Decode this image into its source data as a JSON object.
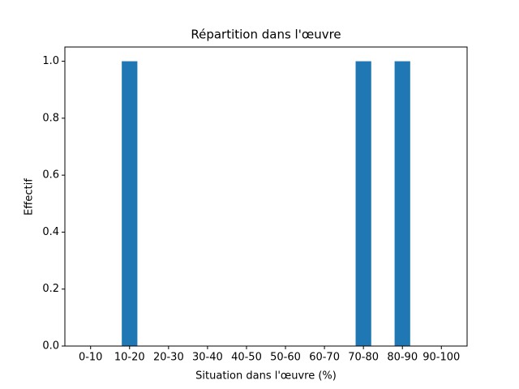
{
  "chart_data": {
    "type": "bar",
    "title": "Répartition dans l'œuvre",
    "x_label": "Situation dans l'œuvre (%)",
    "y_label": "Effectif",
    "categories": [
      "0-10",
      "10-20",
      "20-30",
      "30-40",
      "40-50",
      "50-60",
      "60-70",
      "70-80",
      "80-90",
      "90-100"
    ],
    "values": [
      0,
      1,
      0,
      0,
      0,
      0,
      0,
      1,
      1,
      0
    ],
    "color": "#1f77b4",
    "ylim": [
      0,
      1.05
    ],
    "yticks": [
      {
        "value": 0,
        "label": "0.0"
      },
      {
        "value": 0.2,
        "label": "0.2"
      },
      {
        "value": 0.4,
        "label": "0.4"
      },
      {
        "value": 0.6,
        "label": "0.6"
      },
      {
        "value": 0.8,
        "label": "0.8"
      },
      {
        "value": 1,
        "label": "1.0"
      }
    ],
    "grid": false
  }
}
